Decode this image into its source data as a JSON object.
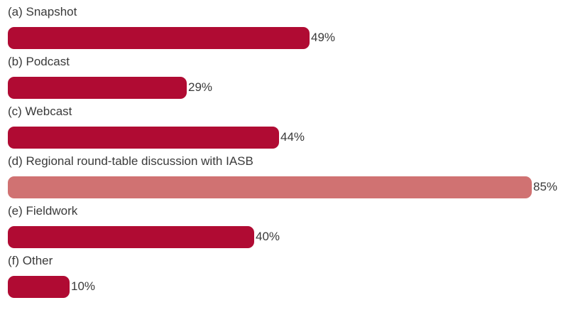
{
  "chart_data": {
    "type": "bar",
    "orientation": "horizontal",
    "categories": [
      "(a) Snapshot",
      "(b) Podcast",
      "(c) Webcast",
      "(d) Regional round-table discussion with IASB",
      "(e) Fieldwork",
      "(f) Other"
    ],
    "values": [
      49,
      29,
      44,
      85,
      40,
      10
    ],
    "value_labels": [
      "49%",
      "29%",
      "44%",
      "85%",
      "40%",
      "10%"
    ],
    "xlim": [
      0,
      100
    ],
    "grid": false,
    "legend": "none",
    "highlight_index": 3,
    "colors": {
      "bar": "#b00b33",
      "highlight": "#d07272"
    }
  }
}
